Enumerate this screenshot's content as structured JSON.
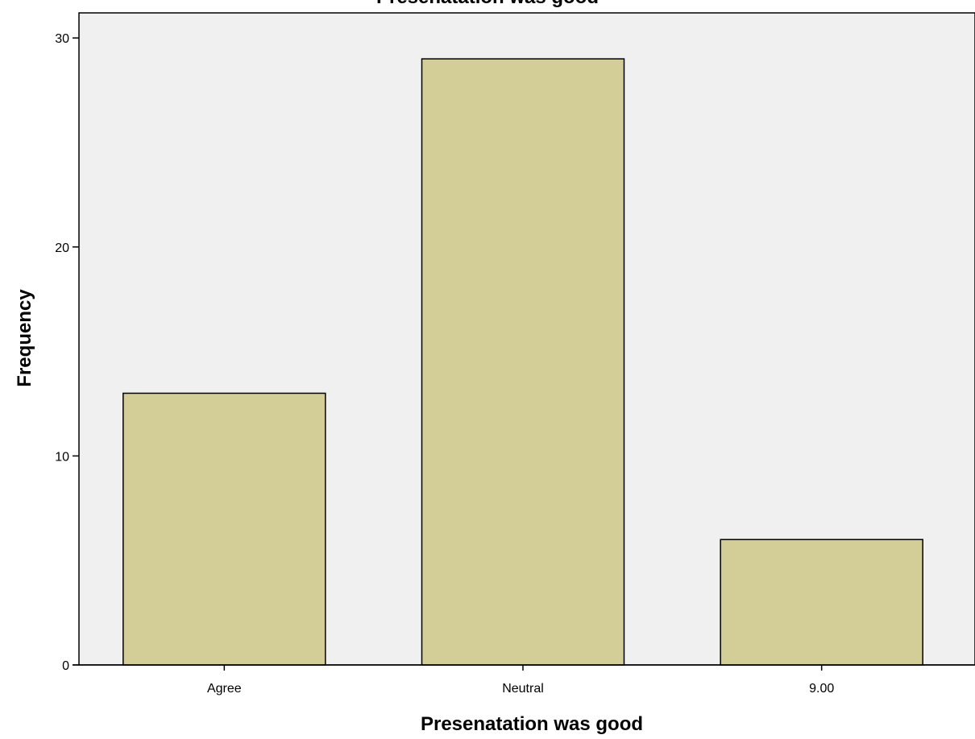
{
  "chart_data": {
    "type": "bar",
    "title": "Presenatation was good",
    "xlabel": "Presenatation was good",
    "ylabel": "Frequency",
    "categories": [
      "Agree",
      "Neutral",
      "9.00"
    ],
    "values": [
      13,
      29,
      6
    ],
    "ylim": [
      0,
      31.2
    ],
    "yticks": [
      "0",
      "10",
      "20",
      "30"
    ],
    "grid": false,
    "legend": "none"
  },
  "colors": {
    "plot_background": "#f0f0f0",
    "bar_fill": "#d3ce97",
    "bar_stroke": "#000000"
  }
}
